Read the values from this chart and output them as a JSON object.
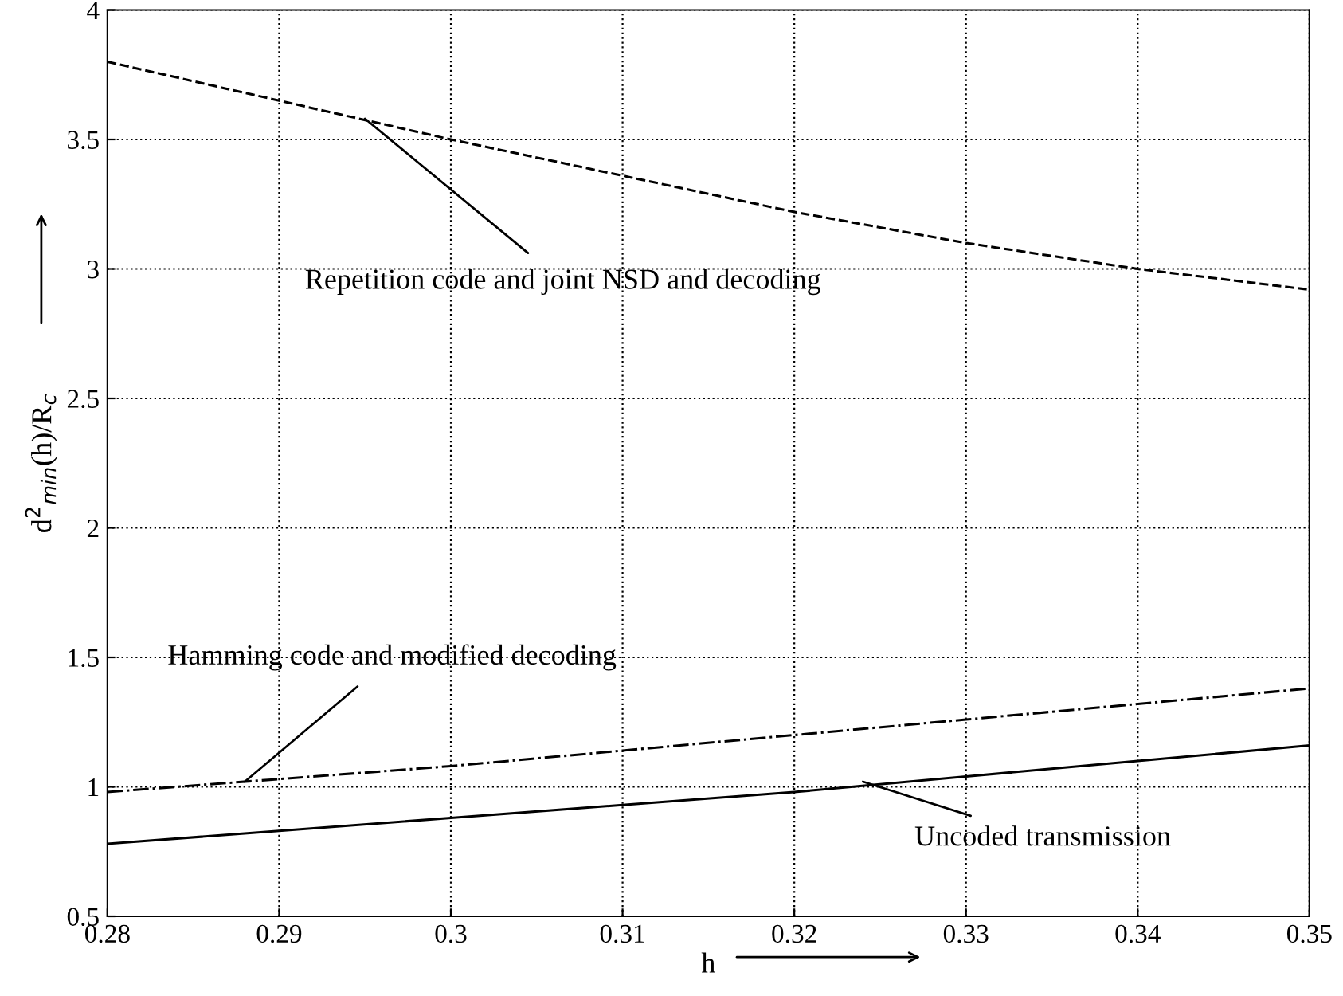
{
  "chart_data": {
    "type": "line",
    "xlabel": "h",
    "ylabel": "d$^{2}$$_{min}$(h)/R$_{c}$",
    "x": [
      0.28,
      0.29,
      0.3,
      0.31,
      0.32,
      0.33,
      0.34,
      0.35
    ],
    "series": [
      {
        "color": "#000000",
        "line_style": "dashed",
        "values": [
          3.8,
          3.65,
          3.5,
          3.36,
          3.22,
          3.1,
          3.0,
          2.92
        ]
      },
      {
        "color": "#000000",
        "line_style": "dashdot",
        "values": [
          0.98,
          1.03,
          1.08,
          1.14,
          1.2,
          1.26,
          1.32,
          1.38
        ]
      },
      {
        "color": "#000000",
        "line_style": "solid",
        "values": [
          0.78,
          0.83,
          0.88,
          0.93,
          0.98,
          1.04,
          1.1,
          1.16
        ]
      }
    ],
    "annotations": [
      {
        "text": "Repetition code and joint NSD and decoding",
        "x": 0.295,
        "y": 3.58
      },
      {
        "text": "Hamming code and modified decoding",
        "x": 0.288,
        "y": 1.02
      },
      {
        "text": "Uncoded transmission",
        "x": 0.324,
        "y": 1.02
      }
    ],
    "xlim": [
      0.28,
      0.35
    ],
    "xticks": [
      0.28,
      0.29,
      0.3,
      0.31,
      0.32,
      0.33,
      0.34,
      0.35
    ],
    "ylim": [
      0.5,
      4
    ],
    "yticks": [
      0.5,
      1,
      1.5,
      2,
      2.5,
      3,
      3.5,
      4
    ],
    "grid": true,
    "legend": false
  }
}
